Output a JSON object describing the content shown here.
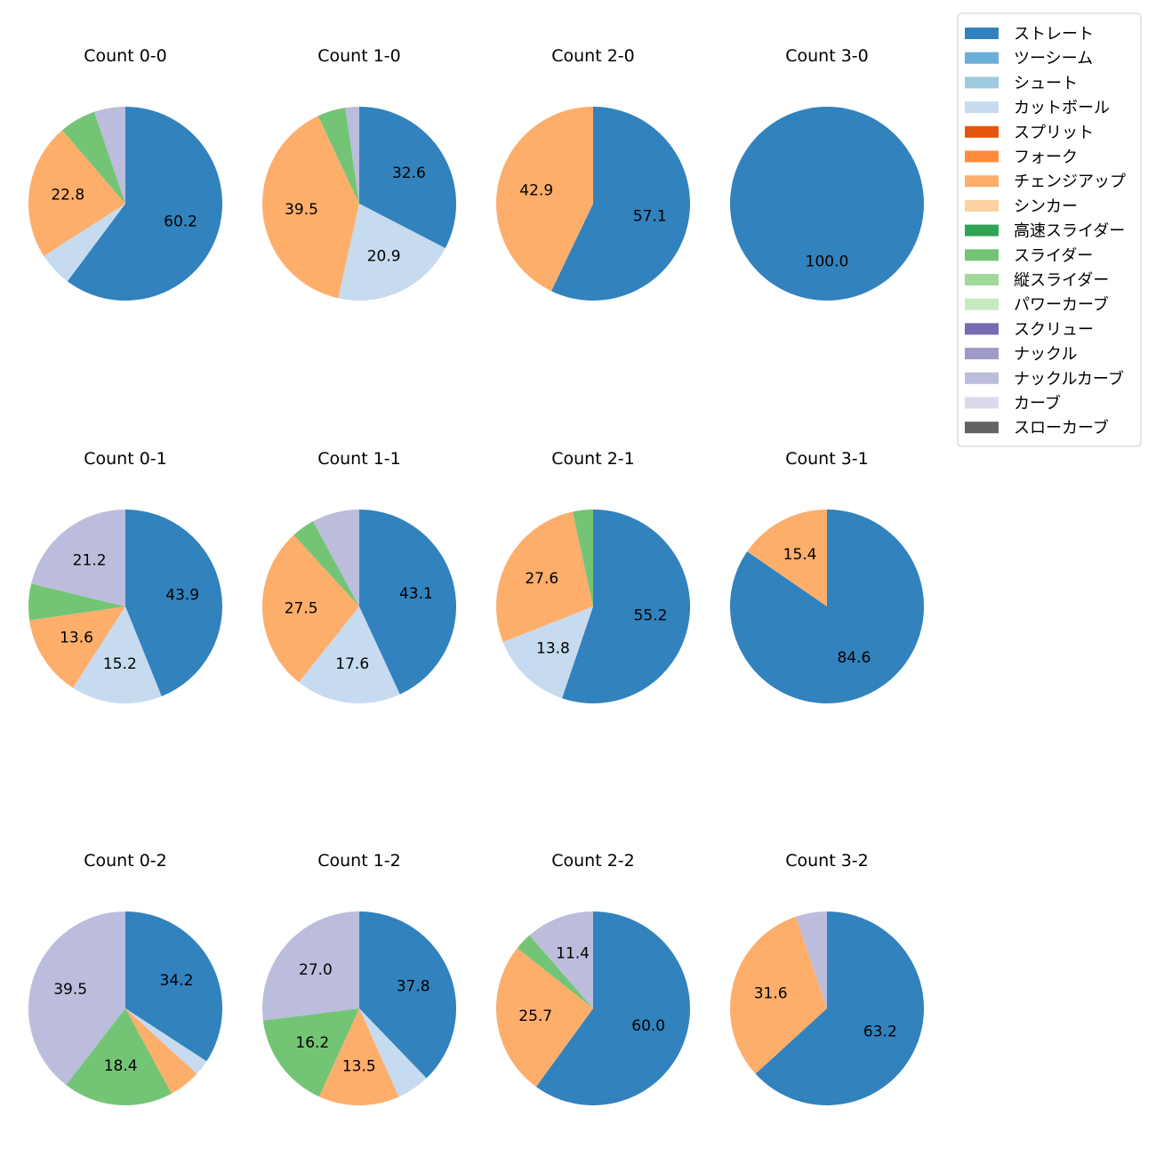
{
  "chart_data": {
    "type": "pie",
    "legend": {
      "placement": "top-right",
      "entries": [
        {
          "name": "ストレート",
          "color": "#3182bd"
        },
        {
          "name": "ツーシーム",
          "color": "#6baed6"
        },
        {
          "name": "シュート",
          "color": "#9ecae1"
        },
        {
          "name": "カットボール",
          "color": "#c6dbef"
        },
        {
          "name": "スプリット",
          "color": "#e6550d"
        },
        {
          "name": "フォーク",
          "color": "#fd8d3c"
        },
        {
          "name": "チェンジアップ",
          "color": "#fdae6b"
        },
        {
          "name": "シンカー",
          "color": "#fdd0a2"
        },
        {
          "name": "高速スライダー",
          "color": "#31a354"
        },
        {
          "name": "スライダー",
          "color": "#74c476"
        },
        {
          "name": "縦スライダー",
          "color": "#a1d99b"
        },
        {
          "name": "パワーカーブ",
          "color": "#c7e9c0"
        },
        {
          "name": "スクリュー",
          "color": "#756bb1"
        },
        {
          "name": "ナックル",
          "color": "#9e9ac8"
        },
        {
          "name": "ナックルカーブ",
          "color": "#bcbddc"
        },
        {
          "name": "カーブ",
          "color": "#dadaeb"
        },
        {
          "name": "スローカーブ",
          "color": "#636363"
        }
      ]
    },
    "pies": [
      {
        "title": "Count 0-0",
        "slices": [
          {
            "pitch": "ストレート",
            "value": 60.2,
            "label": "60.2"
          },
          {
            "pitch": "カットボール",
            "value": 5.7,
            "label": ""
          },
          {
            "pitch": "チェンジアップ",
            "value": 22.8,
            "label": "22.8"
          },
          {
            "pitch": "スライダー",
            "value": 6.1,
            "label": ""
          },
          {
            "pitch": "ナックルカーブ",
            "value": 5.2,
            "label": ""
          }
        ]
      },
      {
        "title": "Count 1-0",
        "slices": [
          {
            "pitch": "ストレート",
            "value": 32.6,
            "label": "32.6"
          },
          {
            "pitch": "カットボール",
            "value": 20.9,
            "label": "20.9"
          },
          {
            "pitch": "チェンジアップ",
            "value": 39.5,
            "label": "39.5"
          },
          {
            "pitch": "スライダー",
            "value": 4.7,
            "label": ""
          },
          {
            "pitch": "ナックルカーブ",
            "value": 2.3,
            "label": ""
          }
        ]
      },
      {
        "title": "Count 2-0",
        "slices": [
          {
            "pitch": "ストレート",
            "value": 57.1,
            "label": "57.1"
          },
          {
            "pitch": "チェンジアップ",
            "value": 42.9,
            "label": "42.9"
          }
        ]
      },
      {
        "title": "Count 3-0",
        "slices": [
          {
            "pitch": "ストレート",
            "value": 100.0,
            "label": "100.0"
          }
        ]
      },
      {
        "title": "Count 0-1",
        "slices": [
          {
            "pitch": "ストレート",
            "value": 43.9,
            "label": "43.9"
          },
          {
            "pitch": "カットボール",
            "value": 15.2,
            "label": "15.2"
          },
          {
            "pitch": "チェンジアップ",
            "value": 13.6,
            "label": "13.6"
          },
          {
            "pitch": "スライダー",
            "value": 6.1,
            "label": ""
          },
          {
            "pitch": "ナックルカーブ",
            "value": 21.2,
            "label": "21.2"
          }
        ]
      },
      {
        "title": "Count 1-1",
        "slices": [
          {
            "pitch": "ストレート",
            "value": 43.1,
            "label": "43.1"
          },
          {
            "pitch": "カットボール",
            "value": 17.6,
            "label": "17.6"
          },
          {
            "pitch": "チェンジアップ",
            "value": 27.5,
            "label": "27.5"
          },
          {
            "pitch": "スライダー",
            "value": 3.9,
            "label": ""
          },
          {
            "pitch": "ナックルカーブ",
            "value": 7.9,
            "label": ""
          }
        ]
      },
      {
        "title": "Count 2-1",
        "slices": [
          {
            "pitch": "ストレート",
            "value": 55.2,
            "label": "55.2"
          },
          {
            "pitch": "カットボール",
            "value": 13.8,
            "label": "13.8"
          },
          {
            "pitch": "チェンジアップ",
            "value": 27.6,
            "label": "27.6"
          },
          {
            "pitch": "スライダー",
            "value": 3.4,
            "label": ""
          }
        ]
      },
      {
        "title": "Count 3-1",
        "slices": [
          {
            "pitch": "ストレート",
            "value": 84.6,
            "label": "84.6"
          },
          {
            "pitch": "チェンジアップ",
            "value": 15.4,
            "label": "15.4"
          }
        ]
      },
      {
        "title": "Count 0-2",
        "slices": [
          {
            "pitch": "ストレート",
            "value": 34.2,
            "label": "34.2"
          },
          {
            "pitch": "カットボール",
            "value": 2.6,
            "label": ""
          },
          {
            "pitch": "チェンジアップ",
            "value": 5.3,
            "label": ""
          },
          {
            "pitch": "スライダー",
            "value": 18.4,
            "label": "18.4"
          },
          {
            "pitch": "ナックルカーブ",
            "value": 39.5,
            "label": "39.5"
          }
        ]
      },
      {
        "title": "Count 1-2",
        "slices": [
          {
            "pitch": "ストレート",
            "value": 37.8,
            "label": "37.8"
          },
          {
            "pitch": "カットボール",
            "value": 5.5,
            "label": ""
          },
          {
            "pitch": "チェンジアップ",
            "value": 13.5,
            "label": "13.5"
          },
          {
            "pitch": "スライダー",
            "value": 16.2,
            "label": "16.2"
          },
          {
            "pitch": "ナックルカーブ",
            "value": 27.0,
            "label": "27.0"
          }
        ]
      },
      {
        "title": "Count 2-2",
        "slices": [
          {
            "pitch": "ストレート",
            "value": 60.0,
            "label": "60.0"
          },
          {
            "pitch": "チェンジアップ",
            "value": 25.7,
            "label": "25.7"
          },
          {
            "pitch": "スライダー",
            "value": 2.9,
            "label": ""
          },
          {
            "pitch": "ナックルカーブ",
            "value": 11.4,
            "label": "11.4"
          }
        ]
      },
      {
        "title": "Count 3-2",
        "slices": [
          {
            "pitch": "ストレート",
            "value": 63.2,
            "label": "63.2"
          },
          {
            "pitch": "チェンジアップ",
            "value": 31.6,
            "label": "31.6"
          },
          {
            "pitch": "ナックルカーブ",
            "value": 5.2,
            "label": ""
          }
        ]
      }
    ]
  }
}
